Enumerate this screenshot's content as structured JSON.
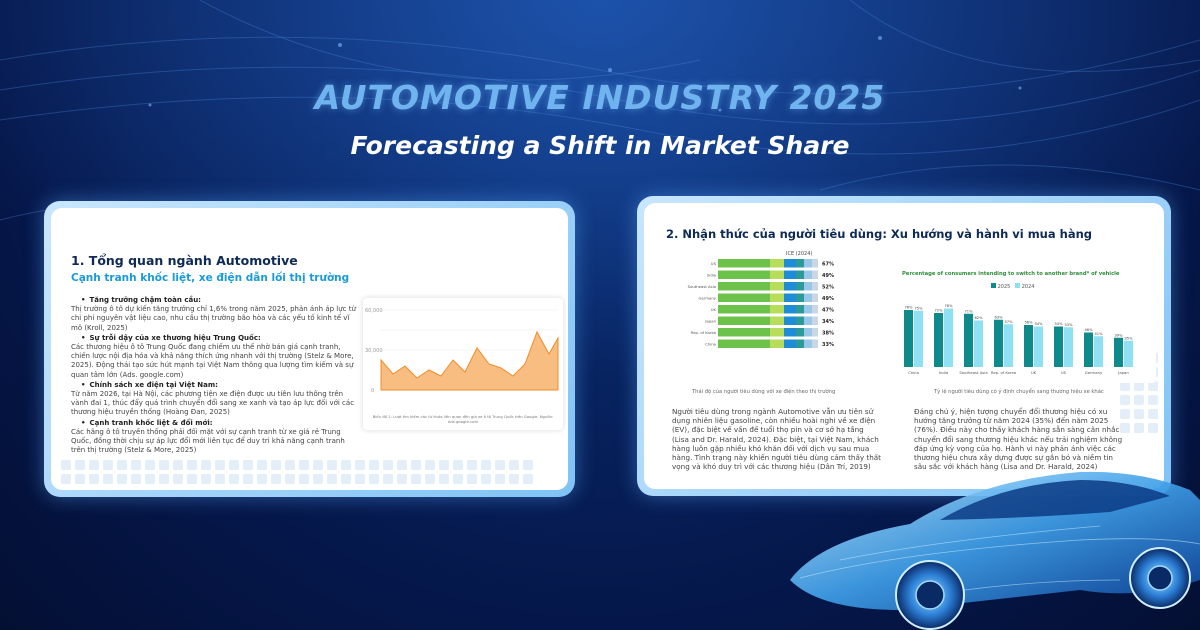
{
  "hero": {
    "title": "AUTOMOTIVE INDUSTRY 2025",
    "subtitle": "Forecasting a Shift in Market Share"
  },
  "slide_left": {
    "heading": "1. Tổng quan ngành Automotive",
    "subheading": "Cạnh tranh khốc liệt, xe điện dẫn lối thị trường",
    "bullets": [
      {
        "title": "Tăng trưởng chậm toàn cầu:",
        "body": "Thị trường ô tô dự kiến tăng trưởng chỉ 1,6% trong năm 2025, phản ánh áp lực từ chi phí nguyên vật liệu cao, nhu cầu thị trường bão hòa và các yếu tố kinh tế vĩ mô (Kroll, 2025)"
      },
      {
        "title": "Sự trỗi dậy của xe thương hiệu Trung Quốc:",
        "body": "Các thương hiệu ô tô Trung Quốc đang chiếm ưu thế nhờ bán giá cạnh tranh, chiến lược nội địa hóa và khả năng thích ứng nhanh với thị trường (Stelz & More, 2025). Động thái tạo sức hút mạnh tại Việt Nam thông qua lượng tìm kiếm và sự quan tâm lớn (Ads. google.com)"
      },
      {
        "title": "Chính sách xe điện tại Việt Nam:",
        "body": "Từ năm 2026, tại Hà Nội, các phương tiện xe điện được ưu tiên lưu thông trên vành đai 1, thúc đẩy quá trình chuyển đổi sang xe xanh và tạo áp lực đối với các thương hiệu truyền thống (Hoàng Đan, 2025)"
      },
      {
        "title": "Cạnh tranh khốc liệt & đổi mới:",
        "body": "Các hãng ô tô truyền thống phải đối mặt với sự cạnh tranh từ xe giá rẻ Trung Quốc, đồng thời chịu sự áp lực đổi mới liên tục để duy trì khả năng cạnh tranh trên thị trường (Stelz & More, 2025)"
      }
    ],
    "area_chart": {
      "caption": "Biểu đồ 1: Lượt tìm kiếm các từ khóa liên quan đến giá xe ô tô Trung Quốc trên Google. Nguồn: Ads.google.com"
    }
  },
  "slide_right": {
    "heading": "2. Nhận thức của người tiêu dùng: Xu hướng và hành vi mua hàng",
    "stacked_chart": {
      "header": "ICE (2024)",
      "caption": "Thái độ của người tiêu dùng với xe điện theo thị trường",
      "rows": [
        {
          "label": "US",
          "pct": "67%"
        },
        {
          "label": "India",
          "pct": "49%"
        },
        {
          "label": "Southeast Asia",
          "pct": "52%"
        },
        {
          "label": "Germany",
          "pct": "49%"
        },
        {
          "label": "UK",
          "pct": "47%"
        },
        {
          "label": "Japan",
          "pct": "34%"
        },
        {
          "label": "Rep. of Korea",
          "pct": "38%"
        },
        {
          "label": "China",
          "pct": "33%"
        }
      ]
    },
    "bar_chart": {
      "title": "Percentage of consumers intending to switch to another brand* of vehicle",
      "caption": "Tỷ lệ người tiêu dùng có ý định chuyển sang thương hiệu xe khác",
      "series_names": [
        "2025",
        "2024"
      ],
      "colors": [
        "#0e8a8a",
        "#8ee0f2"
      ],
      "categories": [
        "China",
        "India",
        "Southeast Asia",
        "Rep. of Korea",
        "UK",
        "US",
        "Germany",
        "Japan"
      ],
      "values_2025": [
        76,
        72,
        71,
        63,
        56,
        54,
        46,
        39
      ],
      "values_2024": [
        75,
        78,
        62,
        57,
        54,
        53,
        41,
        35
      ],
      "labels_2025": [
        "76%",
        "72%",
        "71%",
        "63%",
        "56%",
        "54%",
        "46%",
        "39%"
      ],
      "labels_2024": [
        "75%",
        "78%",
        "62%",
        "57%",
        "54%",
        "53%",
        "41%",
        "35%"
      ]
    },
    "para_left": "Người tiêu dùng trong ngành Automotive vẫn ưu tiên sử dụng nhiên liệu gasoline, còn nhiều hoài nghi về xe điện (EV), đặc biệt về vấn đề tuổi thọ pin và cơ sở hạ tầng (Lisa and Dr. Harald, 2024). Đặc biệt, tại Việt Nam, khách hàng luôn gặp nhiều khó khăn đối với dịch vụ sau mua hàng. Tình trạng này khiến người tiêu dùng cảm thấy thất vọng và khó duy trì với các thương hiệu (Dân Trí, 2019)",
    "para_right": "Đáng chú ý, hiện tượng chuyển đổi thương hiệu có xu hướng tăng trưởng từ năm 2024 (35%) đến năm 2025 (76%). Điều này cho thấy khách hàng sẵn sàng cân nhắc chuyển đổi sang thương hiệu khác nếu trải nghiệm không đáp ứng kỳ vọng của họ. Hành vi này phản ánh việc các thương hiệu chưa xây dựng được sự gắn bó và niềm tin sâu sắc với khách hàng (Lisa and Dr. Harald, 2024)"
  }
}
